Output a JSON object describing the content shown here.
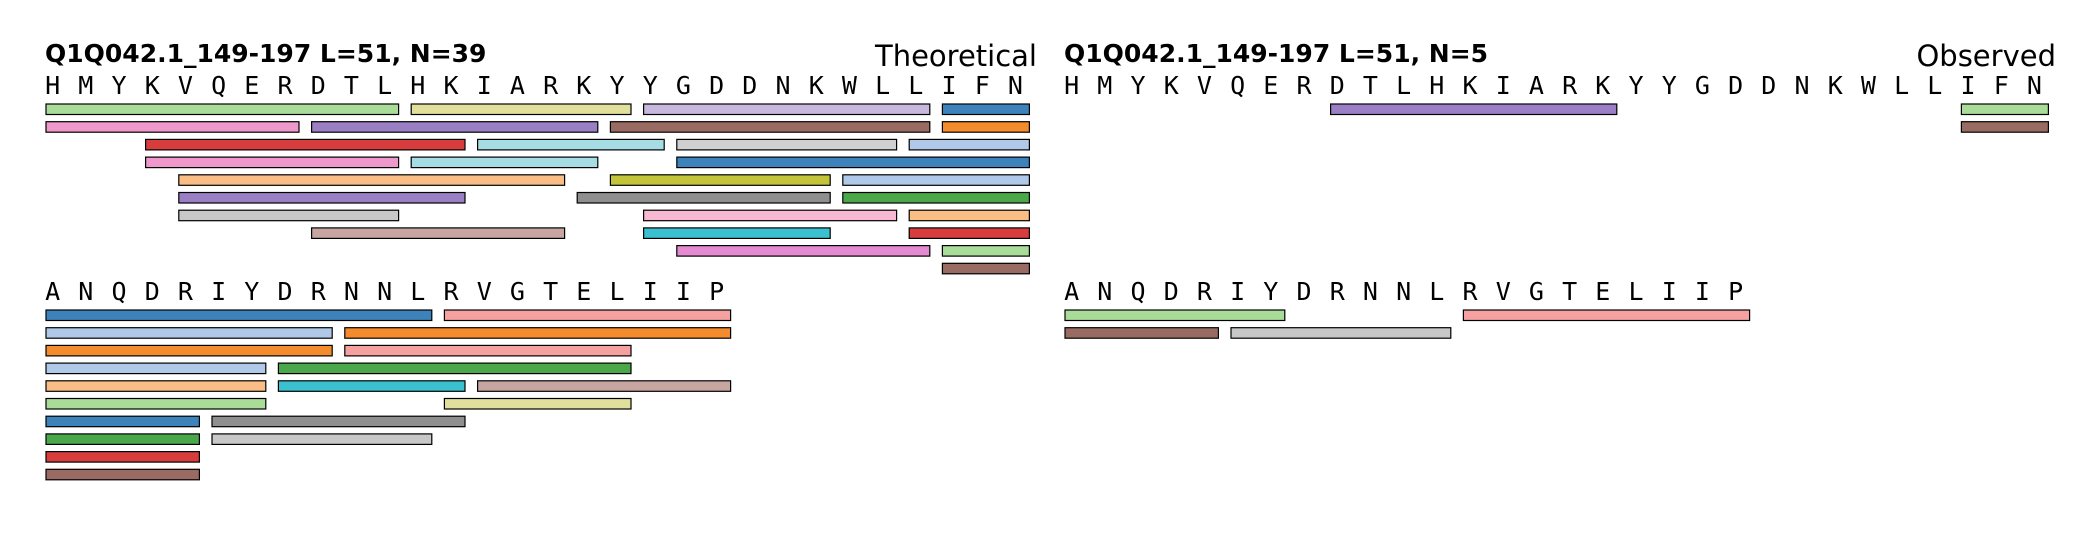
{
  "panels": [
    {
      "title": "Q1Q042.1_149-197  L=51, N=39",
      "label": "Theoretical",
      "rows": [
        {
          "sequence": "HMYKVQERDTLHKIARKYYGDDNKWLLIFN",
          "peptides": [
            {
              "start": 0,
              "end": 10,
              "color": "#a8dc98"
            },
            {
              "start": 11,
              "end": 17,
              "color": "#e0e09c"
            },
            {
              "start": 18,
              "end": 26,
              "color": "#c9b8de"
            },
            {
              "start": 27,
              "end": 29,
              "color": "#3d82ba"
            },
            {
              "start": 0,
              "end": 7,
              "color": "#ef98cb"
            },
            {
              "start": 8,
              "end": 16,
              "color": "#9b7fc4"
            },
            {
              "start": 17,
              "end": 26,
              "color": "#9a6b62"
            },
            {
              "start": 26,
              "end": 29,
              "color": "#b0c9e8"
            },
            {
              "start": 3,
              "end": 12,
              "color": "#d73d3d"
            },
            {
              "start": 13,
              "end": 18,
              "color": "#a6dce3"
            },
            {
              "start": 19,
              "end": 29,
              "color": "#3d82ba"
            },
            {
              "start": 3,
              "end": 10,
              "color": "#ef98cb"
            },
            {
              "start": 11,
              "end": 16,
              "color": "#a6dce3"
            },
            {
              "start": 17,
              "end": 23,
              "color": "#c3c43a"
            },
            {
              "start": 24,
              "end": 29,
              "color": "#b0c9e8"
            },
            {
              "start": 4,
              "end": 15,
              "color": "#fbbd86"
            },
            {
              "start": 16,
              "end": 23,
              "color": "#8f8f8f"
            },
            {
              "start": 24,
              "end": 29,
              "color": "#4aa84a"
            },
            {
              "start": 4,
              "end": 12,
              "color": "#9b7fc4"
            },
            {
              "start": 18,
              "end": 25,
              "color": "#f7b9d2"
            },
            {
              "start": 26,
              "end": 29,
              "color": "#fbbd86"
            },
            {
              "start": 4,
              "end": 10,
              "color": "#c8c8c8"
            },
            {
              "start": 18,
              "end": 23,
              "color": "#3bc0cf"
            },
            {
              "start": 26,
              "end": 29,
              "color": "#d73d3d"
            },
            {
              "start": 8,
              "end": 15,
              "color": "#c7a6a1"
            },
            {
              "start": 19,
              "end": 26,
              "color": "#e48ad0"
            },
            {
              "start": 27,
              "end": 29,
              "color": "#f48b2c"
            },
            {
              "start": 19,
              "end": 25,
              "color": "#d0d0d0"
            },
            {
              "start": 27,
              "end": 29,
              "color": "#a8dc98"
            },
            {
              "start": 27,
              "end": 29,
              "color": "#9a6b62"
            }
          ]
        },
        {
          "sequence": "ANQDRIYDRNNLRVGTELIIP",
          "peptides": [
            {
              "start": 0,
              "end": 11,
              "color": "#3d82ba"
            },
            {
              "start": 12,
              "end": 20,
              "color": "#f5a1a1"
            },
            {
              "start": 0,
              "end": 8,
              "color": "#b0c9e8"
            },
            {
              "start": 9,
              "end": 20,
              "color": "#f48b2c"
            },
            {
              "start": 0,
              "end": 8,
              "color": "#f48b2c"
            },
            {
              "start": 9,
              "end": 17,
              "color": "#f5a1a1"
            },
            {
              "start": 0,
              "end": 6,
              "color": "#b0c9e8"
            },
            {
              "start": 7,
              "end": 17,
              "color": "#4aa84a"
            },
            {
              "start": 0,
              "end": 6,
              "color": "#fbbd86"
            },
            {
              "start": 7,
              "end": 12,
              "color": "#3bc0cf"
            },
            {
              "start": 13,
              "end": 20,
              "color": "#c7a6a1"
            },
            {
              "start": 0,
              "end": 6,
              "color": "#a8dc98"
            },
            {
              "start": 12,
              "end": 17,
              "color": "#e0e09c"
            },
            {
              "start": 0,
              "end": 4,
              "color": "#3d82ba"
            },
            {
              "start": 5,
              "end": 12,
              "color": "#8f8f8f"
            },
            {
              "start": 0,
              "end": 4,
              "color": "#4aa84a"
            },
            {
              "start": 5,
              "end": 11,
              "color": "#c8c8c8"
            },
            {
              "start": 0,
              "end": 4,
              "color": "#d73d3d"
            },
            {
              "start": 0,
              "end": 4,
              "color": "#9a6b62"
            }
          ]
        }
      ]
    },
    {
      "title": "Q1Q042.1_149-197  L=51, N=5",
      "label": "Observed",
      "rows": [
        {
          "sequence": "HMYKVQERDTLHKIARKYYGDDNKWLLIFN",
          "peptides": [
            {
              "start": 8,
              "end": 16,
              "color": "#9b7fc4"
            },
            {
              "start": 27,
              "end": 29,
              "color": "#a8dc98"
            },
            {
              "start": 27,
              "end": 29,
              "color": "#9a6b62"
            }
          ]
        },
        {
          "sequence": "ANQDRIYDRNNLRVGTELIIP",
          "peptides": [
            {
              "start": 0,
              "end": 6,
              "color": "#a8dc98"
            },
            {
              "start": 12,
              "end": 20,
              "color": "#f5a1a1"
            },
            {
              "start": 0,
              "end": 4,
              "color": "#9a6b62"
            },
            {
              "start": 5,
              "end": 11,
              "color": "#c8c8c8"
            }
          ]
        }
      ]
    }
  ]
}
